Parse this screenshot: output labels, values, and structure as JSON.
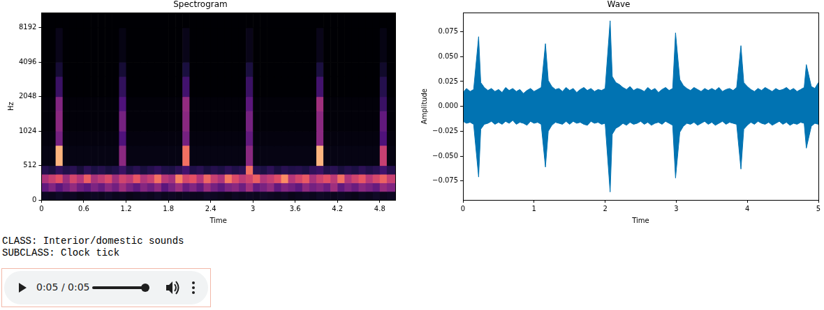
{
  "chart_data": [
    {
      "type": "heatmap",
      "title": "Spectrogram",
      "x_label": "Time",
      "y_label": "Hz",
      "log": "y",
      "grid": false,
      "xlim": [
        0,
        5.02
      ],
      "xticks": [
        0,
        0.6,
        1.2,
        1.8,
        2.4,
        3,
        3.6,
        4.2,
        4.8
      ],
      "ylim": [
        0,
        11025
      ],
      "yticks": [
        0,
        512,
        1024,
        2048,
        4096,
        8192
      ],
      "x_edges": [
        0,
        0.1,
        0.2,
        0.3,
        0.4,
        0.5,
        0.6,
        0.7,
        0.8,
        0.9,
        1,
        1.1,
        1.2,
        1.3,
        1.4,
        1.5,
        1.6,
        1.7,
        1.8,
        1.9,
        2,
        2.1,
        2.2,
        2.3,
        2.4,
        2.5,
        2.6,
        2.7,
        2.8,
        2.9,
        3,
        3.1,
        3.2,
        3.3,
        3.4,
        3.5,
        3.6,
        3.7,
        3.8,
        3.9,
        4,
        4.1,
        4.2,
        4.3,
        4.4,
        4.5,
        4.6,
        4.7,
        4.8,
        4.9,
        5.02
      ],
      "y_edges": [
        0,
        128,
        256,
        384,
        512,
        768,
        1024,
        1536,
        2048,
        3072,
        4096,
        8192,
        11025
      ],
      "color_range": [
        0,
        100
      ],
      "cells": [
        [
          6,
          5,
          7,
          5,
          6,
          4,
          5,
          6,
          5,
          7,
          5,
          6,
          4,
          5,
          6,
          5,
          7,
          5,
          6,
          5,
          6,
          5,
          5,
          7,
          6,
          5,
          4,
          6,
          5,
          6,
          5,
          7,
          6,
          5,
          6,
          4,
          5,
          6,
          5,
          7,
          6,
          5,
          6,
          5,
          4,
          6,
          5,
          7,
          5,
          6
        ],
        [
          30,
          38,
          28,
          35,
          42,
          33,
          29,
          37,
          31,
          40,
          34,
          45,
          36,
          30,
          39,
          33,
          41,
          28,
          36,
          44,
          32,
          38,
          30,
          43,
          35,
          29,
          37,
          40,
          33,
          46,
          31,
          36,
          42,
          30,
          38,
          34,
          29,
          41,
          35,
          39,
          33,
          45,
          30,
          37,
          32,
          40,
          36,
          31,
          43,
          38
        ],
        [
          48,
          55,
          62,
          44,
          58,
          50,
          66,
          47,
          53,
          60,
          45,
          57,
          52,
          64,
          49,
          55,
          70,
          51,
          46,
          74,
          58,
          63,
          50,
          68,
          55,
          48,
          72,
          60,
          52,
          57,
          66,
          49,
          54,
          61,
          76,
          50,
          58,
          65,
          47,
          56,
          62,
          52,
          70,
          49,
          57,
          64,
          51,
          59,
          67,
          55
        ],
        [
          15,
          12,
          18,
          14,
          16,
          11,
          17,
          13,
          15,
          12,
          14,
          20,
          13,
          16,
          12,
          15,
          18,
          14,
          13,
          17,
          22,
          14,
          16,
          12,
          15,
          13,
          17,
          14,
          16,
          70,
          15,
          13,
          17,
          12,
          16,
          14,
          15,
          13,
          18,
          20,
          14,
          16,
          12,
          15,
          13,
          17,
          14,
          16,
          22,
          15
        ],
        [
          3,
          3,
          85,
          3,
          3,
          3,
          3,
          3,
          3,
          3,
          3,
          40,
          3,
          3,
          3,
          3,
          3,
          3,
          3,
          3,
          70,
          3,
          3,
          3,
          3,
          3,
          3,
          3,
          3,
          40,
          3,
          3,
          3,
          3,
          3,
          3,
          3,
          3,
          3,
          85,
          3,
          3,
          3,
          3,
          3,
          3,
          3,
          3,
          55,
          3
        ],
        [
          2,
          2,
          35,
          2,
          2,
          2,
          2,
          2,
          2,
          2,
          2,
          25,
          2,
          2,
          2,
          2,
          2,
          2,
          2,
          2,
          35,
          2,
          2,
          2,
          2,
          2,
          2,
          2,
          2,
          30,
          2,
          2,
          2,
          2,
          2,
          2,
          2,
          2,
          2,
          40,
          2,
          2,
          2,
          2,
          2,
          2,
          2,
          2,
          25,
          2
        ],
        [
          1,
          1,
          40,
          1,
          1,
          1,
          1,
          1,
          1,
          1,
          1,
          35,
          1,
          1,
          1,
          1,
          1,
          1,
          1,
          1,
          40,
          1,
          1,
          1,
          1,
          1,
          1,
          1,
          1,
          35,
          1,
          1,
          1,
          1,
          1,
          1,
          1,
          1,
          1,
          40,
          1,
          1,
          1,
          1,
          1,
          1,
          1,
          1,
          30,
          1
        ],
        [
          1,
          1,
          38,
          1,
          1,
          1,
          1,
          1,
          1,
          1,
          1,
          25,
          1,
          1,
          1,
          1,
          1,
          1,
          1,
          1,
          42,
          1,
          1,
          1,
          1,
          1,
          1,
          1,
          1,
          28,
          1,
          1,
          1,
          1,
          1,
          1,
          1,
          1,
          1,
          45,
          1,
          1,
          1,
          1,
          1,
          1,
          1,
          1,
          20,
          1
        ],
        [
          0,
          0,
          20,
          0,
          0,
          0,
          0,
          0,
          0,
          0,
          0,
          18,
          0,
          0,
          0,
          0,
          0,
          0,
          0,
          0,
          22,
          0,
          0,
          0,
          0,
          0,
          0,
          0,
          0,
          20,
          0,
          0,
          0,
          0,
          0,
          0,
          0,
          0,
          0,
          22,
          0,
          0,
          0,
          0,
          0,
          0,
          0,
          0,
          15,
          0
        ],
        [
          0,
          0,
          10,
          0,
          0,
          0,
          0,
          0,
          0,
          0,
          0,
          10,
          0,
          0,
          0,
          0,
          0,
          0,
          0,
          0,
          12,
          0,
          0,
          0,
          0,
          0,
          0,
          0,
          0,
          12,
          0,
          0,
          0,
          0,
          0,
          0,
          0,
          0,
          0,
          12,
          0,
          0,
          0,
          0,
          0,
          0,
          0,
          0,
          8,
          0
        ],
        [
          0,
          0,
          4,
          0,
          0,
          0,
          0,
          0,
          0,
          0,
          0,
          3,
          0,
          0,
          0,
          0,
          0,
          0,
          0,
          0,
          4,
          0,
          0,
          0,
          0,
          0,
          0,
          0,
          0,
          4,
          0,
          0,
          0,
          0,
          0,
          0,
          0,
          0,
          0,
          4,
          0,
          0,
          0,
          0,
          0,
          0,
          0,
          0,
          3,
          0
        ],
        [
          0,
          0,
          0,
          0,
          0,
          0,
          0,
          0,
          0,
          0,
          0,
          0,
          0,
          0,
          0,
          0,
          0,
          0,
          0,
          0,
          0,
          0,
          0,
          0,
          0,
          0,
          0,
          0,
          0,
          0,
          0,
          0,
          0,
          0,
          0,
          0,
          0,
          0,
          0,
          0,
          0,
          0,
          0,
          0,
          0,
          0,
          0,
          0,
          0,
          0
        ]
      ]
    },
    {
      "type": "line",
      "title": "Wave",
      "x_label": "Time",
      "y_label": "Amplitude",
      "color": "#0173b2",
      "grid": false,
      "xlim": [
        0,
        5
      ],
      "xticks": [
        0,
        1,
        2,
        3,
        4,
        5
      ],
      "ylim": [
        -0.094,
        0.094
      ],
      "yticks": [
        {
          "value": -0.075,
          "label": "−0.075"
        },
        {
          "value": -0.05,
          "label": "−0.050"
        },
        {
          "value": -0.025,
          "label": "−0.025"
        },
        {
          "value": 0,
          "label": "0.000"
        },
        0.025,
        {
          "value": 0.05,
          "label": "0.050"
        },
        0.075
      ],
      "x": [
        0,
        0.05,
        0.1,
        0.15,
        0.22,
        0.25,
        0.3,
        0.35,
        0.4,
        0.45,
        0.5,
        0.55,
        0.6,
        0.65,
        0.7,
        0.75,
        0.8,
        0.85,
        0.9,
        0.95,
        1,
        1.05,
        1.1,
        1.16,
        1.2,
        1.25,
        1.3,
        1.35,
        1.4,
        1.45,
        1.5,
        1.55,
        1.6,
        1.65,
        1.7,
        1.75,
        1.8,
        1.85,
        1.9,
        1.95,
        2,
        2.07,
        2.1,
        2.15,
        2.2,
        2.25,
        2.3,
        2.35,
        2.4,
        2.45,
        2.5,
        2.55,
        2.6,
        2.65,
        2.7,
        2.75,
        2.8,
        2.85,
        2.9,
        2.95,
        2.99,
        3.05,
        3.1,
        3.15,
        3.2,
        3.25,
        3.3,
        3.35,
        3.4,
        3.45,
        3.5,
        3.55,
        3.6,
        3.65,
        3.7,
        3.75,
        3.8,
        3.85,
        3.91,
        3.95,
        4,
        4.05,
        4.1,
        4.15,
        4.2,
        4.25,
        4.3,
        4.35,
        4.4,
        4.45,
        4.5,
        4.55,
        4.6,
        4.65,
        4.7,
        4.75,
        4.8,
        4.83,
        4.9,
        4.95,
        5
      ],
      "values_max": [
        0.014,
        0.018,
        0.015,
        0.017,
        0.07,
        0.024,
        0.019,
        0.016,
        0.018,
        0.015,
        0.017,
        0.014,
        0.019,
        0.016,
        0.018,
        0.015,
        0.017,
        0.013,
        0.016,
        0.018,
        0.015,
        0.017,
        0.019,
        0.063,
        0.026,
        0.02,
        0.017,
        0.018,
        0.015,
        0.019,
        0.016,
        0.018,
        0.014,
        0.017,
        0.019,
        0.016,
        0.018,
        0.015,
        0.017,
        0.016,
        0.018,
        0.086,
        0.03,
        0.024,
        0.022,
        0.019,
        0.017,
        0.02,
        0.016,
        0.018,
        0.017,
        0.015,
        0.019,
        0.016,
        0.018,
        0.014,
        0.017,
        0.019,
        0.016,
        0.018,
        0.074,
        0.027,
        0.021,
        0.018,
        0.016,
        0.019,
        0.017,
        0.015,
        0.018,
        0.016,
        0.018,
        0.016,
        0.019,
        0.015,
        0.017,
        0.018,
        0.016,
        0.019,
        0.061,
        0.024,
        0.02,
        0.017,
        0.015,
        0.018,
        0.016,
        0.019,
        0.017,
        0.015,
        0.018,
        0.016,
        0.017,
        0.019,
        0.016,
        0.018,
        0.015,
        0.017,
        0.019,
        0.042,
        0.02,
        0.018,
        0.024
      ],
      "values_min": [
        -0.015,
        -0.017,
        -0.016,
        -0.018,
        -0.071,
        -0.023,
        -0.018,
        -0.017,
        -0.015,
        -0.018,
        -0.016,
        -0.018,
        -0.015,
        -0.017,
        -0.014,
        -0.018,
        -0.016,
        -0.017,
        -0.019,
        -0.015,
        -0.017,
        -0.016,
        -0.018,
        -0.061,
        -0.025,
        -0.019,
        -0.016,
        -0.017,
        -0.018,
        -0.015,
        -0.018,
        -0.015,
        -0.017,
        -0.016,
        -0.018,
        -0.019,
        -0.015,
        -0.017,
        -0.016,
        -0.018,
        -0.017,
        -0.086,
        -0.028,
        -0.022,
        -0.02,
        -0.017,
        -0.019,
        -0.016,
        -0.018,
        -0.017,
        -0.015,
        -0.018,
        -0.016,
        -0.019,
        -0.017,
        -0.016,
        -0.018,
        -0.015,
        -0.017,
        -0.019,
        -0.072,
        -0.026,
        -0.02,
        -0.017,
        -0.018,
        -0.016,
        -0.019,
        -0.017,
        -0.015,
        -0.018,
        -0.016,
        -0.019,
        -0.017,
        -0.015,
        -0.018,
        -0.016,
        -0.017,
        -0.018,
        -0.063,
        -0.023,
        -0.019,
        -0.016,
        -0.018,
        -0.015,
        -0.017,
        -0.018,
        -0.016,
        -0.019,
        -0.017,
        -0.015,
        -0.018,
        -0.016,
        -0.019,
        -0.017,
        -0.018,
        -0.016,
        -0.017,
        -0.042,
        -0.02,
        -0.017,
        -0.018
      ]
    }
  ],
  "labels": {
    "class": "CLASS: Interior/domestic sounds",
    "subclass": "SUBCLASS: Clock tick"
  },
  "audio_player": {
    "time": "0:05 / 0:05"
  }
}
